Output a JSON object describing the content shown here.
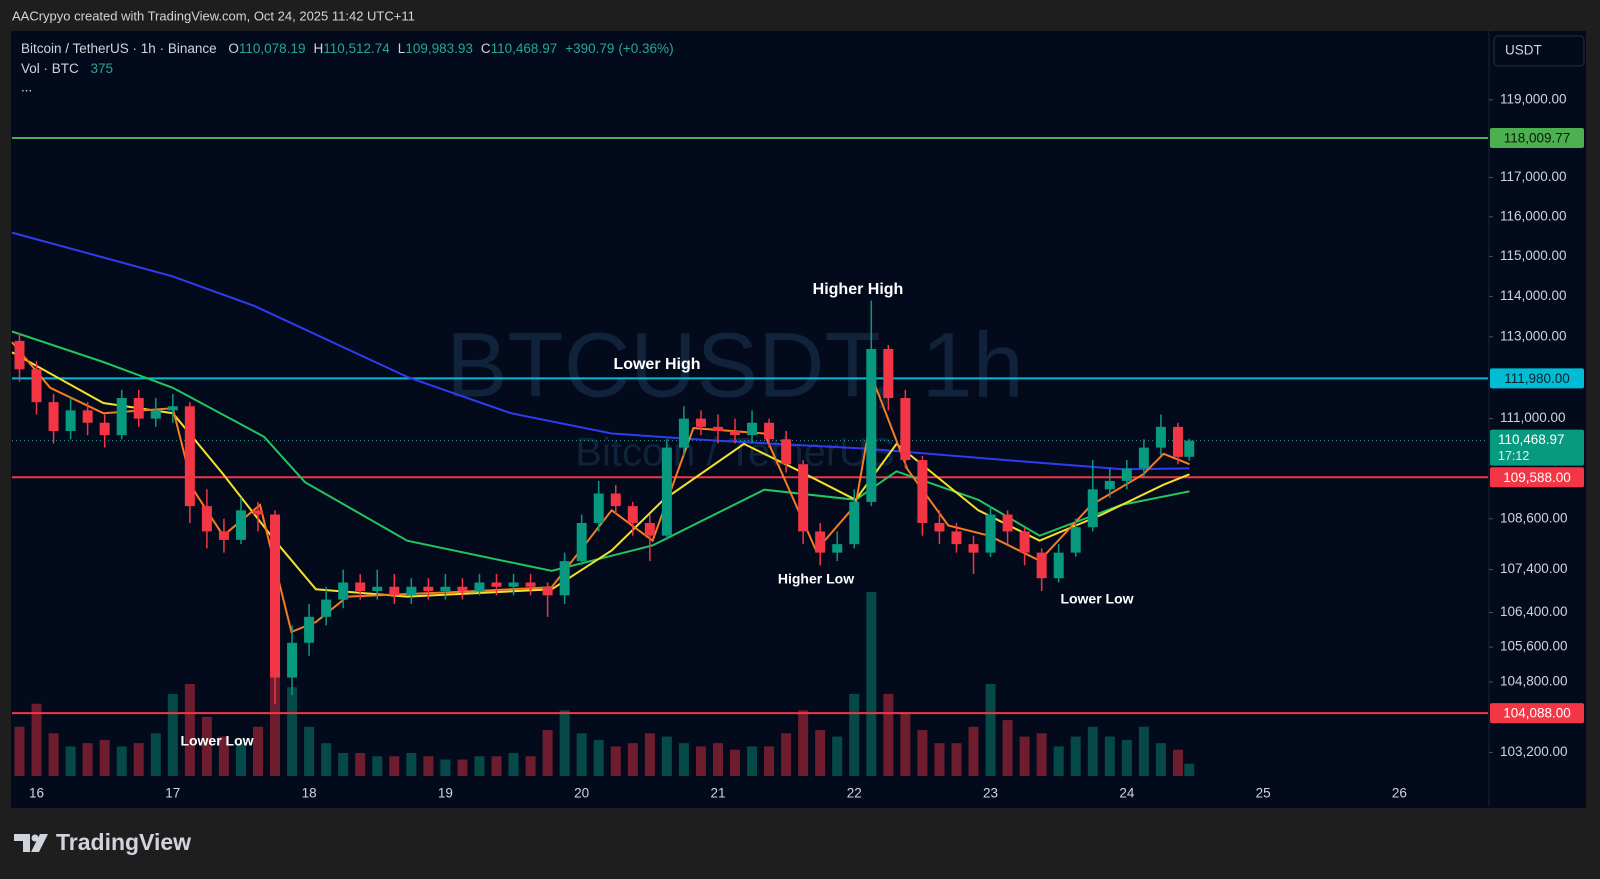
{
  "header": {
    "credit": "AACrypyo created with TradingView.com, Oct 24, 2025 11:42 UTC+11",
    "symbol": "Bitcoin / TetherUS · 1h · Binance",
    "legend": [
      {
        "key": "O",
        "value": 110078.19,
        "label": "110,078.19"
      },
      {
        "key": "H",
        "value": 110512.74,
        "label": "110,512.74"
      },
      {
        "key": "L",
        "value": 109983.93,
        "label": "109,983.93"
      },
      {
        "key": "C",
        "value": 110468.97,
        "label": "110,468.97"
      }
    ],
    "change": {
      "value": 390.79,
      "label": "+390.79"
    },
    "change_pct": {
      "value": 0.36,
      "label": "(+0.36%)"
    },
    "volume_label": "Vol · BTC",
    "more": "...",
    "currency": "USDT",
    "countdown": "17:12",
    "watermark": "BTCUSDT, 1h",
    "watermark_sub": "Bitcoin / TetherUS"
  },
  "footer": {
    "logo": "TradingView"
  },
  "chart_data": {
    "type": "candlestick",
    "log_scale": true,
    "grid": false,
    "up_color": "#089981",
    "down_color": "#f23645",
    "x": [
      15.875,
      16,
      16.125,
      16.25,
      16.375,
      16.5,
      16.625,
      16.75,
      16.875,
      17,
      17.125,
      17.25,
      17.375,
      17.5,
      17.625,
      17.75,
      17.875,
      18,
      18.125,
      18.25,
      18.375,
      18.5,
      18.625,
      18.75,
      18.875,
      19,
      19.125,
      19.25,
      19.375,
      19.5,
      19.625,
      19.75,
      19.875,
      20,
      20.125,
      20.25,
      20.375,
      20.5,
      20.625,
      20.75,
      20.875,
      21,
      21.125,
      21.25,
      21.375,
      21.5,
      21.625,
      21.75,
      21.875,
      22,
      22.125,
      22.25,
      22.375,
      22.5,
      22.625,
      22.75,
      22.875,
      23,
      23.125,
      23.25,
      23.375,
      23.5,
      23.625,
      23.75,
      23.875,
      24,
      24.125,
      24.25,
      24.375,
      24.458
    ],
    "open": [
      112900,
      112200,
      111400,
      110700,
      111200,
      110900,
      110600,
      111500,
      111000,
      111200,
      111300,
      108900,
      108300,
      108100,
      108800,
      108700,
      104900,
      105700,
      106300,
      106700,
      107100,
      106900,
      107000,
      106800,
      107000,
      106900,
      107000,
      106900,
      107100,
      107000,
      107100,
      107000,
      106800,
      107600,
      108500,
      109200,
      108900,
      108500,
      108200,
      110300,
      111000,
      110800,
      110700,
      110600,
      110900,
      110500,
      109900,
      108300,
      107800,
      108000,
      109000,
      112700,
      111500,
      110000,
      108500,
      108300,
      108000,
      107800,
      108700,
      108300,
      107800,
      107200,
      107800,
      108400,
      109300,
      109500,
      109800,
      110300,
      110800,
      110078.19
    ],
    "high": [
      113100,
      112400,
      111600,
      111500,
      111400,
      111100,
      111700,
      111700,
      111500,
      111600,
      111400,
      109300,
      108600,
      109100,
      109000,
      108800,
      106100,
      106600,
      107000,
      107400,
      107300,
      107400,
      107300,
      107200,
      107200,
      107300,
      107200,
      107300,
      107300,
      107300,
      107300,
      107100,
      107800,
      108700,
      109500,
      109400,
      109000,
      108700,
      110500,
      111300,
      111200,
      111100,
      111000,
      111200,
      111000,
      110700,
      110000,
      108500,
      108300,
      109300,
      113900,
      112800,
      111700,
      110100,
      108800,
      108500,
      108200,
      108900,
      108800,
      108400,
      107900,
      108000,
      108600,
      110000,
      109800,
      110000,
      110500,
      111100,
      110900,
      110512.74
    ],
    "low": [
      111900,
      111100,
      110400,
      110500,
      110600,
      110300,
      110500,
      110800,
      110800,
      110900,
      108500,
      107900,
      107800,
      108000,
      108300,
      104300,
      104500,
      105400,
      106100,
      106500,
      106700,
      106700,
      106600,
      106600,
      106700,
      106700,
      106700,
      106800,
      106800,
      106800,
      106800,
      106300,
      106600,
      107500,
      108300,
      108700,
      108200,
      107600,
      108100,
      110100,
      110600,
      110400,
      110400,
      110400,
      110300,
      109700,
      108000,
      107500,
      107600,
      107900,
      108900,
      111200,
      109800,
      108200,
      108000,
      107800,
      107300,
      107700,
      108000,
      107500,
      106900,
      107100,
      107700,
      108300,
      109100,
      109300,
      109600,
      110100,
      109900,
      109983.93
    ],
    "close": [
      112200,
      111400,
      110700,
      111200,
      110900,
      110600,
      111500,
      111000,
      111200,
      111300,
      108900,
      108300,
      108100,
      108800,
      108700,
      104900,
      105700,
      106300,
      106700,
      107100,
      106900,
      107000,
      106800,
      107000,
      106900,
      107000,
      106900,
      107100,
      107000,
      107100,
      107000,
      106800,
      107600,
      108500,
      109200,
      108900,
      108500,
      108200,
      110300,
      111000,
      110800,
      110700,
      110600,
      110900,
      110500,
      109900,
      108300,
      107800,
      108000,
      109000,
      112700,
      111500,
      110000,
      108500,
      108300,
      108000,
      107800,
      108700,
      108300,
      107800,
      107200,
      107800,
      108400,
      109300,
      109500,
      109800,
      110300,
      110800,
      110078.19,
      110468.97
    ],
    "volume": [
      1500,
      2200,
      1300,
      900,
      1000,
      1100,
      900,
      1000,
      1300,
      2500,
      2800,
      1800,
      1200,
      1000,
      1500,
      3300,
      2700,
      1500,
      1000,
      700,
      700,
      600,
      600,
      700,
      600,
      500,
      500,
      600,
      600,
      700,
      600,
      1400,
      2000,
      1300,
      1100,
      900,
      1000,
      1300,
      1200,
      1000,
      900,
      1000,
      800,
      900,
      900,
      1300,
      2000,
      1400,
      1200,
      2500,
      5600,
      2500,
      1900,
      1400,
      1000,
      1000,
      1500,
      2800,
      1700,
      1200,
      1300,
      900,
      1200,
      1500,
      1200,
      1100,
      1500,
      1000,
      800,
      375
    ],
    "lines": [
      {
        "color": "#2f3cf0",
        "x": [
          15.82,
          17,
          17.6,
          18.73,
          19.48,
          20.22,
          20.97,
          22.1,
          23.22,
          23.97,
          24.46
        ],
        "values": [
          115600,
          114500,
          113760,
          112000,
          111130,
          110640,
          110470,
          110270,
          109970,
          109780,
          109800
        ]
      },
      {
        "color": "#22c55e",
        "x": [
          15.82,
          16.49,
          17,
          17.67,
          17.97,
          18.72,
          19.78,
          20.52,
          21.34,
          22.01,
          22.31,
          22.91,
          23.36,
          23.96,
          24.46
        ],
        "values": [
          113130,
          112380,
          111750,
          110560,
          109470,
          108080,
          107370,
          107970,
          109290,
          109050,
          109730,
          109050,
          108200,
          108930,
          109250
        ]
      },
      {
        "color": "#f5e02a",
        "x": [
          15.82,
          16.49,
          17,
          17.37,
          17.75,
          18.05,
          18.72,
          19.78,
          20.22,
          20.6,
          21.19,
          21.57,
          22.01,
          22.31,
          22.91,
          23.36,
          23.81,
          24.27,
          24.46
        ],
        "values": [
          112620,
          111380,
          111130,
          109660,
          108080,
          106940,
          106770,
          106940,
          107850,
          109050,
          110390,
          109780,
          109050,
          110390,
          108800,
          108080,
          108690,
          109410,
          109660
        ]
      },
      {
        "color": "#f57c1f",
        "x": [
          15.82,
          16.1,
          16.49,
          17,
          17.15,
          17.37,
          17.64,
          17.87,
          18.05,
          18.28,
          19.1,
          19.78,
          20.22,
          20.52,
          20.82,
          21.34,
          21.72,
          22.01,
          22.16,
          22.39,
          22.69,
          22.99,
          23.36,
          23.74,
          24.12,
          24.27,
          24.46
        ],
        "values": [
          112870,
          111750,
          111130,
          111250,
          109290,
          108200,
          108930,
          105950,
          106180,
          106770,
          106880,
          106990,
          108800,
          108080,
          110770,
          110640,
          107850,
          108930,
          111750,
          109780,
          108440,
          108200,
          107610,
          108930,
          109660,
          110150,
          109900
        ]
      }
    ],
    "levels": [
      {
        "value": 118009.77,
        "label": "118,009.77",
        "color": "#4caf50",
        "text_color": "#0b1a0b"
      },
      {
        "value": 111980,
        "label": "111,980.00",
        "color": "#00bcd4",
        "text_color": "#06202a"
      },
      {
        "value": 109588,
        "label": "109,588.00",
        "color": "#f23645",
        "text_color": "#ffffff"
      },
      {
        "value": 104088,
        "label": "104,088.00",
        "color": "#f23645",
        "text_color": "#ffffff"
      }
    ],
    "annotations": [
      {
        "text": "Higher High"
      },
      {
        "text": "Lower High"
      },
      {
        "text": "Higher Low"
      },
      {
        "text": "Lower Low"
      },
      {
        "text": "Lower Low"
      }
    ],
    "xlim": [
      15.82,
      26.65
    ],
    "xticks": [
      16,
      17,
      18,
      19,
      20,
      21,
      22,
      23,
      24,
      25,
      26
    ],
    "ylim": [
      102000,
      120800
    ],
    "yticks": [
      {
        "value": 119000,
        "label": "119,000.00"
      },
      {
        "value": 117000,
        "label": "117,000.00"
      },
      {
        "value": 116000,
        "label": "116,000.00"
      },
      {
        "value": 115000,
        "label": "115,000.00"
      },
      {
        "value": 114000,
        "label": "114,000.00"
      },
      {
        "value": 113000,
        "label": "113,000.00"
      },
      {
        "value": 111000,
        "label": "111,000.00"
      },
      {
        "value": 108600,
        "label": "108,600.00"
      },
      {
        "value": 107400,
        "label": "107,400.00"
      },
      {
        "value": 106400,
        "label": "106,400.00"
      },
      {
        "value": 105600,
        "label": "105,600.00"
      },
      {
        "value": 104800,
        "label": "104,800.00"
      },
      {
        "value": 103200,
        "label": "103,200.00"
      }
    ]
  }
}
